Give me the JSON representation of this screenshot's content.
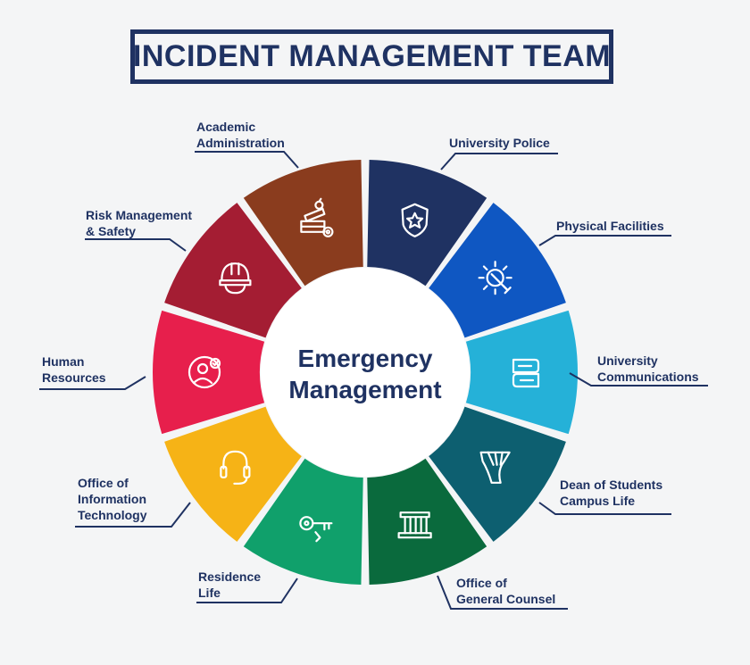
{
  "title": "INCIDENT MANAGEMENT TEAM",
  "center": {
    "line1": "Emergency",
    "line2": "Management"
  },
  "segments": [
    {
      "id": "university-police",
      "lines": [
        "University Police"
      ],
      "color": "#1f3262",
      "icon": "police-badge-icon"
    },
    {
      "id": "physical-facilities",
      "lines": [
        "Physical Facilities"
      ],
      "color": "#0f57c2",
      "icon": "gear-wrench-icon"
    },
    {
      "id": "university-communications",
      "lines": [
        "University",
        "Communications"
      ],
      "color": "#25b1d8",
      "icon": "chat-bubbles-icon"
    },
    {
      "id": "dean-of-students",
      "lines": [
        "Dean of Students",
        "Campus Life"
      ],
      "color": "#0d5f70",
      "icon": "university-logo-icon"
    },
    {
      "id": "general-counsel",
      "lines": [
        "Office of",
        "General Counsel"
      ],
      "color": "#0a6a3d",
      "icon": "courthouse-icon"
    },
    {
      "id": "residence-life",
      "lines": [
        "Residence",
        "Life"
      ],
      "color": "#10a06b",
      "icon": "key-icon"
    },
    {
      "id": "information-technology",
      "lines": [
        "Office of",
        "Information",
        "Technology"
      ],
      "color": "#f6b316",
      "icon": "headset-icon"
    },
    {
      "id": "human-resources",
      "lines": [
        "Human",
        "Resources"
      ],
      "color": "#e71f4c",
      "icon": "person-check-icon"
    },
    {
      "id": "risk-management",
      "lines": [
        "Risk Management",
        "& Safety"
      ],
      "color": "#a41d33",
      "icon": "hard-hat-icon"
    },
    {
      "id": "academic-administration",
      "lines": [
        "Academic",
        "Administration"
      ],
      "color": "#8a3c1e",
      "icon": "books-apple-gear-icon"
    }
  ]
}
